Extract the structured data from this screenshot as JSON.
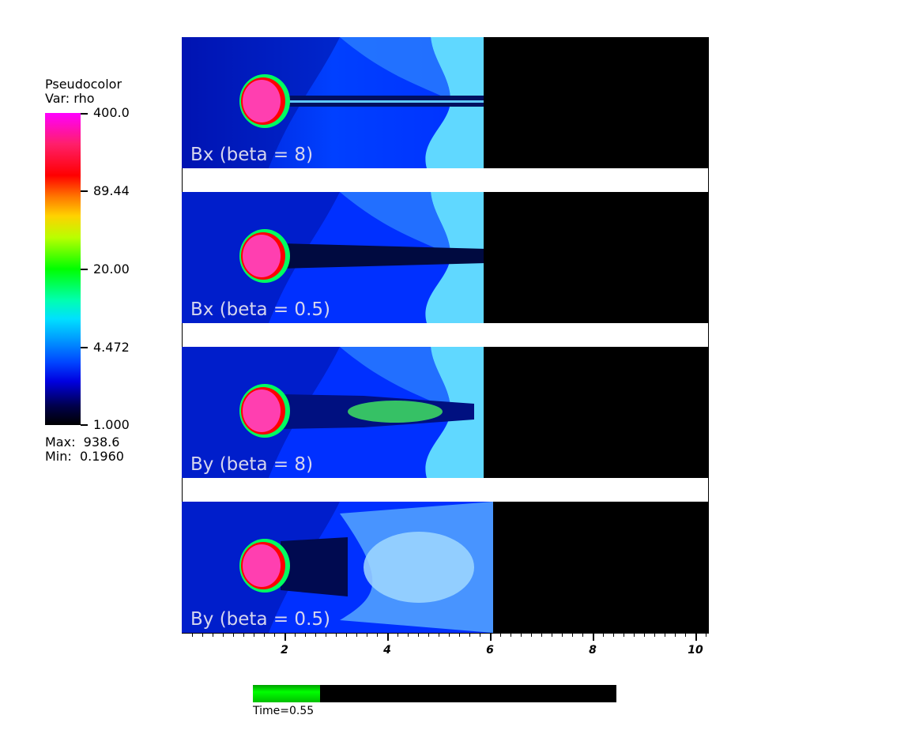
{
  "legend": {
    "title_line1": "Pseudocolor",
    "title_line2": "Var: rho",
    "ticks": [
      "400.0",
      "89.44",
      "20.00",
      "4.472",
      "1.000"
    ],
    "max_label": "Max:  938.6",
    "min_label": "Min:  0.1960"
  },
  "panels": [
    {
      "label": "Bx (beta = 8)"
    },
    {
      "label": "Bx (beta = 0.5)"
    },
    {
      "label": "By (beta = 8)"
    },
    {
      "label": "By (beta = 0.5)"
    }
  ],
  "x_axis": {
    "labels": [
      "2",
      "4",
      "6",
      "8",
      "10"
    ],
    "range": [
      0,
      10.25
    ]
  },
  "time": {
    "label": "Time=0.55",
    "progress": 0.185
  },
  "colors": {
    "clump": "#ff3fb0",
    "ambient": "#0030ff",
    "shocked": "#40c0ff",
    "background": "#000000"
  }
}
